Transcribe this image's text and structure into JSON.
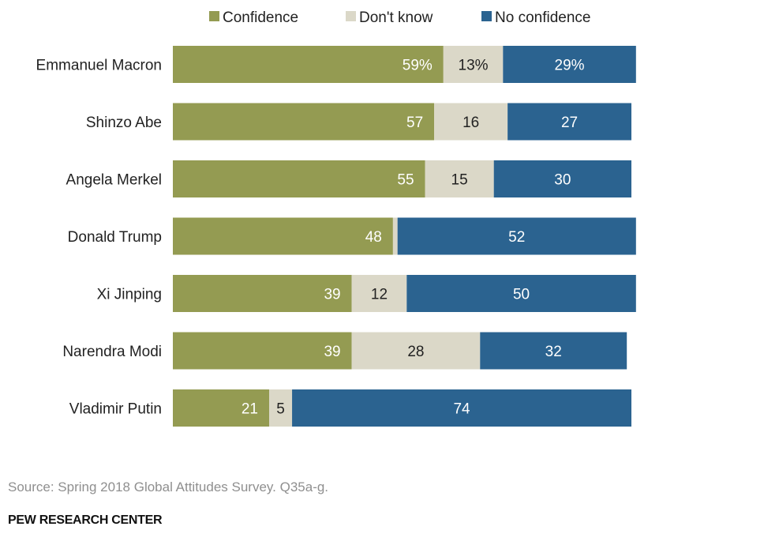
{
  "chart_data": {
    "type": "bar",
    "orientation": "horizontal",
    "stacked": true,
    "title": "",
    "xlabel": "",
    "ylabel": "",
    "xlim": [
      0,
      100
    ],
    "grid": false,
    "legend": {
      "placement": "top"
    },
    "categories": [
      "Emmanuel Macron",
      "Shinzo Abe",
      "Angela Merkel",
      "Donald Trump",
      "Xi Jinping",
      "Narendra Modi",
      "Vladimir Putin"
    ],
    "series": [
      {
        "name": "Confidence",
        "color": "#949b52",
        "label_color": "#ffffff",
        "values": [
          59,
          57,
          55,
          48,
          39,
          39,
          21
        ]
      },
      {
        "name": "Don't know",
        "color": "#dbd8c8",
        "label_color": "#222222",
        "values": [
          13,
          16,
          15,
          1,
          12,
          28,
          5
        ]
      },
      {
        "name": "No confidence",
        "color": "#2b6390",
        "label_color": "#ffffff",
        "values": [
          29,
          27,
          30,
          52,
          50,
          32,
          74
        ]
      }
    ],
    "data_labels": [
      [
        "59%",
        "13%",
        "29%"
      ],
      [
        "57",
        "16",
        "27"
      ],
      [
        "55",
        "15",
        "30"
      ],
      [
        "48",
        "",
        "52"
      ],
      [
        "39",
        "12",
        "50"
      ],
      [
        "39",
        "28",
        "32"
      ],
      [
        "21",
        "5",
        "74"
      ]
    ]
  },
  "footer": {
    "source": "Source: Spring 2018 Global Attitudes Survey. Q35a-g.",
    "brand": "PEW RESEARCH CENTER"
  }
}
